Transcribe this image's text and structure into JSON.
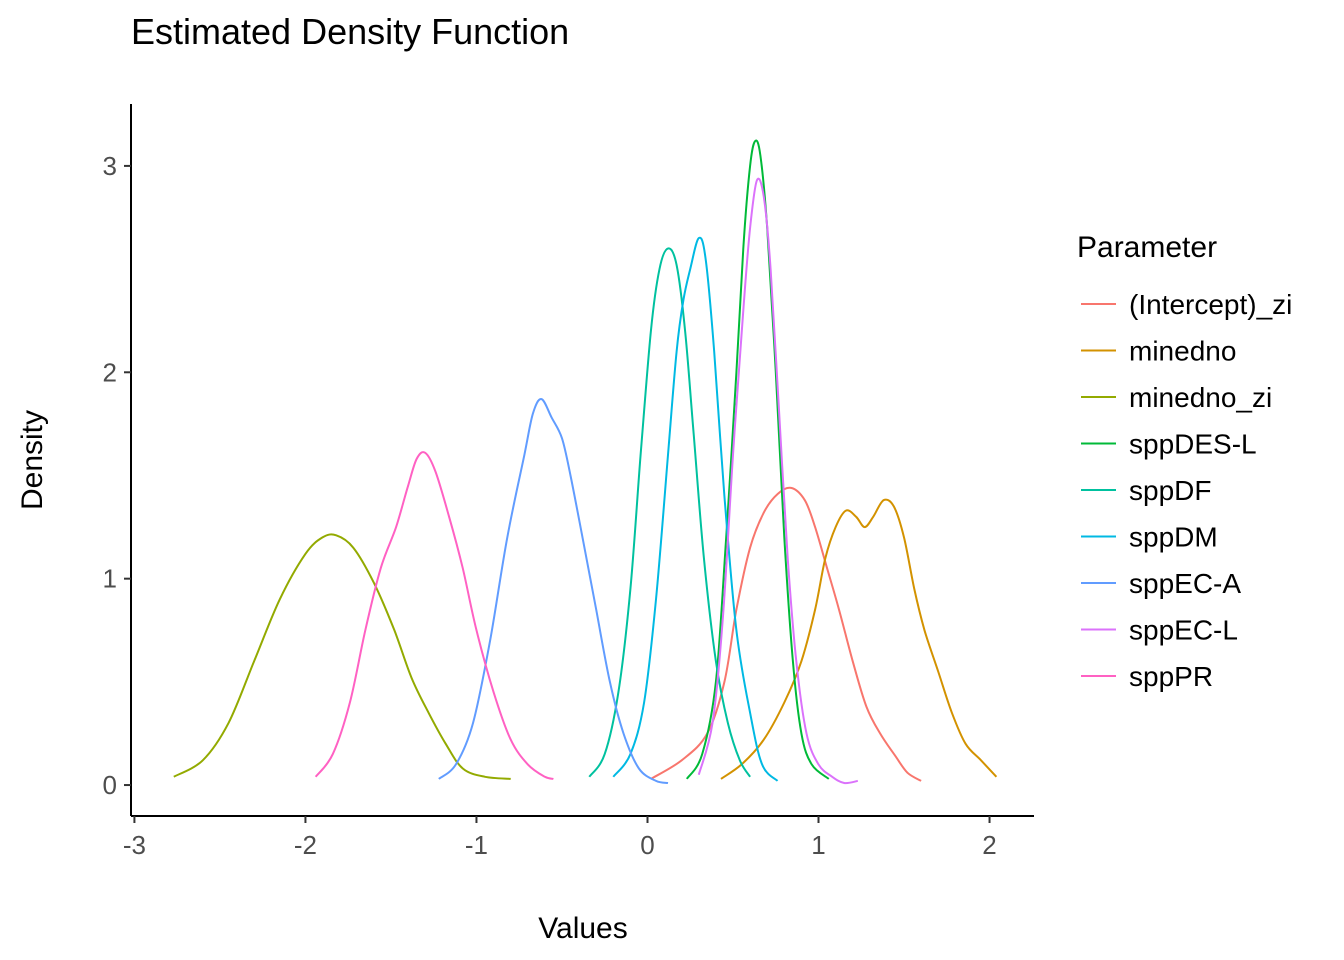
{
  "chart_data": {
    "type": "line",
    "title": "Estimated Density Function",
    "xlabel": "Values",
    "ylabel": "Density",
    "xlim": [
      -3.02,
      2.26
    ],
    "ylim": [
      -0.15,
      3.3
    ],
    "xticks": [
      -3,
      -2,
      -1,
      0,
      1,
      2
    ],
    "xtick_labels": [
      "-3",
      "-2",
      "-1",
      "0",
      "1",
      "2"
    ],
    "yticks": [
      0,
      1,
      2,
      3
    ],
    "ytick_labels": [
      "0",
      "1",
      "2",
      "3"
    ],
    "grid": false,
    "legend": {
      "title": "Parameter",
      "position": "right"
    },
    "series": [
      {
        "name": "(Intercept)_zi",
        "color": "#F8766D",
        "points": [
          [
            0.02,
            0.03
          ],
          [
            0.2,
            0.12
          ],
          [
            0.35,
            0.25
          ],
          [
            0.45,
            0.5
          ],
          [
            0.52,
            0.85
          ],
          [
            0.6,
            1.15
          ],
          [
            0.68,
            1.32
          ],
          [
            0.76,
            1.41
          ],
          [
            0.84,
            1.44
          ],
          [
            0.92,
            1.38
          ],
          [
            0.98,
            1.25
          ],
          [
            1.05,
            1.05
          ],
          [
            1.12,
            0.85
          ],
          [
            1.2,
            0.6
          ],
          [
            1.28,
            0.38
          ],
          [
            1.36,
            0.25
          ],
          [
            1.45,
            0.14
          ],
          [
            1.52,
            0.06
          ],
          [
            1.6,
            0.02
          ]
        ]
      },
      {
        "name": "minedno",
        "color": "#D39200",
        "points": [
          [
            0.43,
            0.03
          ],
          [
            0.55,
            0.1
          ],
          [
            0.68,
            0.22
          ],
          [
            0.8,
            0.4
          ],
          [
            0.9,
            0.6
          ],
          [
            0.98,
            0.85
          ],
          [
            1.04,
            1.1
          ],
          [
            1.1,
            1.25
          ],
          [
            1.16,
            1.33
          ],
          [
            1.22,
            1.3
          ],
          [
            1.27,
            1.25
          ],
          [
            1.32,
            1.3
          ],
          [
            1.38,
            1.38
          ],
          [
            1.44,
            1.35
          ],
          [
            1.5,
            1.2
          ],
          [
            1.56,
            0.95
          ],
          [
            1.62,
            0.75
          ],
          [
            1.7,
            0.55
          ],
          [
            1.78,
            0.35
          ],
          [
            1.86,
            0.2
          ],
          [
            1.95,
            0.12
          ],
          [
            2.04,
            0.04
          ]
        ]
      },
      {
        "name": "minedno_zi",
        "color": "#93AA00",
        "points": [
          [
            -2.77,
            0.04
          ],
          [
            -2.6,
            0.12
          ],
          [
            -2.45,
            0.3
          ],
          [
            -2.3,
            0.6
          ],
          [
            -2.15,
            0.9
          ],
          [
            -2.0,
            1.12
          ],
          [
            -1.9,
            1.2
          ],
          [
            -1.82,
            1.21
          ],
          [
            -1.72,
            1.15
          ],
          [
            -1.6,
            0.98
          ],
          [
            -1.48,
            0.75
          ],
          [
            -1.38,
            0.52
          ],
          [
            -1.28,
            0.35
          ],
          [
            -1.18,
            0.2
          ],
          [
            -1.08,
            0.08
          ],
          [
            -0.95,
            0.04
          ],
          [
            -0.8,
            0.03
          ]
        ]
      },
      {
        "name": "sppDES-L",
        "color": "#00BA38",
        "points": [
          [
            0.23,
            0.03
          ],
          [
            0.32,
            0.15
          ],
          [
            0.4,
            0.5
          ],
          [
            0.46,
            1.2
          ],
          [
            0.52,
            2.0
          ],
          [
            0.56,
            2.6
          ],
          [
            0.6,
            3.0
          ],
          [
            0.63,
            3.12
          ],
          [
            0.66,
            3.05
          ],
          [
            0.7,
            2.7
          ],
          [
            0.75,
            2.0
          ],
          [
            0.8,
            1.2
          ],
          [
            0.85,
            0.6
          ],
          [
            0.9,
            0.25
          ],
          [
            0.96,
            0.1
          ],
          [
            1.06,
            0.03
          ]
        ]
      },
      {
        "name": "sppDF",
        "color": "#00C19F",
        "points": [
          [
            -0.34,
            0.04
          ],
          [
            -0.25,
            0.15
          ],
          [
            -0.17,
            0.45
          ],
          [
            -0.1,
            0.95
          ],
          [
            -0.04,
            1.6
          ],
          [
            0.02,
            2.2
          ],
          [
            0.07,
            2.5
          ],
          [
            0.12,
            2.6
          ],
          [
            0.17,
            2.52
          ],
          [
            0.22,
            2.2
          ],
          [
            0.27,
            1.7
          ],
          [
            0.33,
            1.1
          ],
          [
            0.4,
            0.6
          ],
          [
            0.47,
            0.3
          ],
          [
            0.54,
            0.12
          ],
          [
            0.6,
            0.04
          ]
        ]
      },
      {
        "name": "sppDM",
        "color": "#00B9E3",
        "points": [
          [
            -0.2,
            0.04
          ],
          [
            -0.1,
            0.15
          ],
          [
            -0.02,
            0.4
          ],
          [
            0.05,
            0.9
          ],
          [
            0.12,
            1.6
          ],
          [
            0.17,
            2.1
          ],
          [
            0.21,
            2.35
          ],
          [
            0.25,
            2.5
          ],
          [
            0.3,
            2.65
          ],
          [
            0.34,
            2.55
          ],
          [
            0.39,
            2.1
          ],
          [
            0.45,
            1.4
          ],
          [
            0.52,
            0.75
          ],
          [
            0.6,
            0.35
          ],
          [
            0.67,
            0.1
          ],
          [
            0.76,
            0.02
          ]
        ]
      },
      {
        "name": "sppEC-A",
        "color": "#619CFF",
        "points": [
          [
            -1.22,
            0.03
          ],
          [
            -1.12,
            0.1
          ],
          [
            -1.02,
            0.3
          ],
          [
            -0.92,
            0.7
          ],
          [
            -0.82,
            1.2
          ],
          [
            -0.72,
            1.6
          ],
          [
            -0.67,
            1.8
          ],
          [
            -0.62,
            1.87
          ],
          [
            -0.56,
            1.78
          ],
          [
            -0.5,
            1.68
          ],
          [
            -0.45,
            1.5
          ],
          [
            -0.38,
            1.2
          ],
          [
            -0.3,
            0.85
          ],
          [
            -0.22,
            0.5
          ],
          [
            -0.14,
            0.25
          ],
          [
            -0.05,
            0.08
          ],
          [
            0.05,
            0.02
          ],
          [
            0.12,
            0.01
          ]
        ]
      },
      {
        "name": "sppEC-L",
        "color": "#DB72FB",
        "points": [
          [
            0.3,
            0.05
          ],
          [
            0.38,
            0.3
          ],
          [
            0.44,
            0.8
          ],
          [
            0.5,
            1.6
          ],
          [
            0.56,
            2.3
          ],
          [
            0.6,
            2.7
          ],
          [
            0.64,
            2.93
          ],
          [
            0.68,
            2.85
          ],
          [
            0.72,
            2.5
          ],
          [
            0.77,
            1.8
          ],
          [
            0.82,
            1.1
          ],
          [
            0.87,
            0.6
          ],
          [
            0.93,
            0.25
          ],
          [
            1.0,
            0.1
          ],
          [
            1.08,
            0.04
          ],
          [
            1.15,
            0.01
          ],
          [
            1.23,
            0.02
          ]
        ]
      },
      {
        "name": "sppPR",
        "color": "#FF61C3",
        "points": [
          [
            -1.94,
            0.04
          ],
          [
            -1.84,
            0.15
          ],
          [
            -1.74,
            0.4
          ],
          [
            -1.65,
            0.75
          ],
          [
            -1.56,
            1.05
          ],
          [
            -1.47,
            1.25
          ],
          [
            -1.4,
            1.45
          ],
          [
            -1.35,
            1.58
          ],
          [
            -1.3,
            1.61
          ],
          [
            -1.24,
            1.52
          ],
          [
            -1.16,
            1.3
          ],
          [
            -1.08,
            1.05
          ],
          [
            -1.0,
            0.75
          ],
          [
            -0.9,
            0.45
          ],
          [
            -0.8,
            0.22
          ],
          [
            -0.7,
            0.1
          ],
          [
            -0.6,
            0.04
          ],
          [
            -0.55,
            0.03
          ]
        ]
      }
    ]
  }
}
